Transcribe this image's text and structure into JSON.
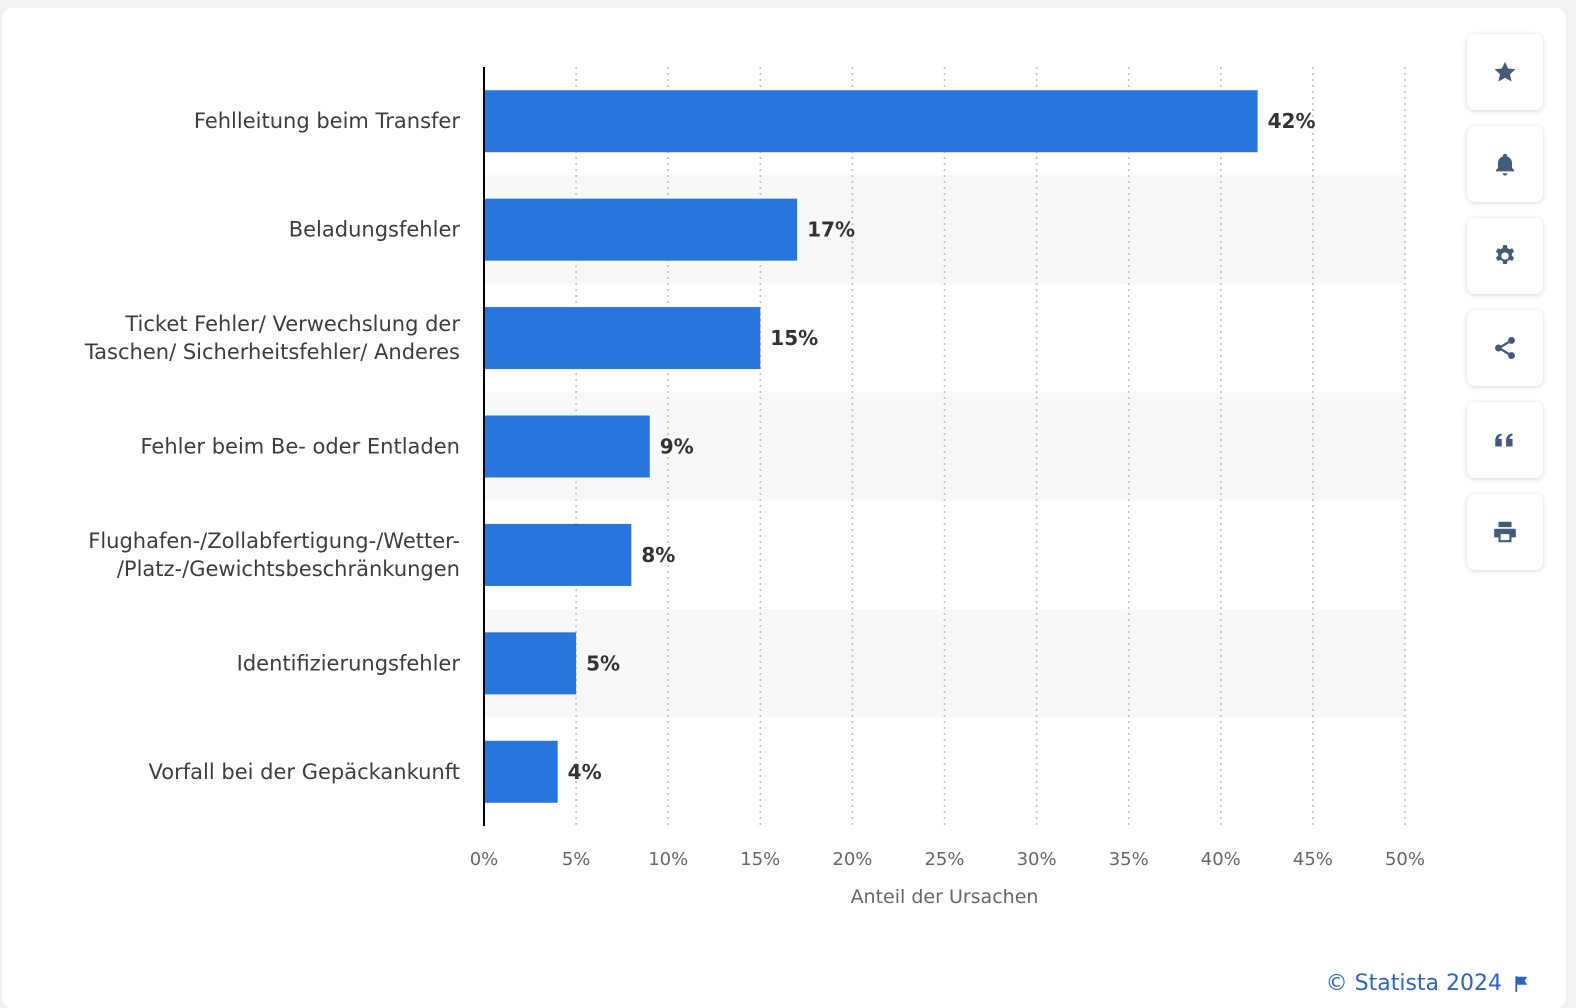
{
  "chart_data": {
    "type": "bar",
    "orientation": "horizontal",
    "categories": [
      [
        "Fehlleitung beim Transfer"
      ],
      [
        "Beladungsfehler"
      ],
      [
        "Ticket Fehler/ Verwechslung der",
        "Taschen/ Sicherheitsfehler/ Anderes"
      ],
      [
        "Fehler beim Be- oder Entladen"
      ],
      [
        "Flughafen-/Zollabfertigung-/Wetter-",
        "/Platz-/Gewichtsbeschränkungen"
      ],
      [
        "Identifizierungsfehler"
      ],
      [
        "Vorfall bei der Gepäckankunft"
      ]
    ],
    "values": [
      42,
      17,
      15,
      9,
      8,
      5,
      4
    ],
    "value_labels": [
      "42%",
      "17%",
      "15%",
      "9%",
      "8%",
      "5%",
      "4%"
    ],
    "xlim": [
      0,
      50
    ],
    "ticks": [
      0,
      5,
      10,
      15,
      20,
      25,
      30,
      35,
      40,
      45,
      50
    ],
    "tick_labels": [
      "0%",
      "5%",
      "10%",
      "15%",
      "20%",
      "25%",
      "30%",
      "35%",
      "40%",
      "45%",
      "50%"
    ],
    "xlabel": "Anteil der Ursachen",
    "grid": "vertical dotted",
    "colors": {
      "bar": "#2875dc",
      "band": "#f8f8f8",
      "grid": "#bfbfbf",
      "axis": "#000000"
    }
  },
  "toolbar": {
    "buttons": [
      {
        "name": "favorite-button",
        "icon": "star-icon"
      },
      {
        "name": "notification-button",
        "icon": "bell-icon"
      },
      {
        "name": "settings-button",
        "icon": "gear-icon"
      },
      {
        "name": "share-button",
        "icon": "share-icon"
      },
      {
        "name": "cite-button",
        "icon": "quote-icon"
      },
      {
        "name": "print-button",
        "icon": "print-icon"
      }
    ],
    "icon_color": "#445a7a"
  },
  "credit": {
    "text": "© Statista 2024",
    "icon": "flag-icon",
    "color": "#2b64c4"
  }
}
